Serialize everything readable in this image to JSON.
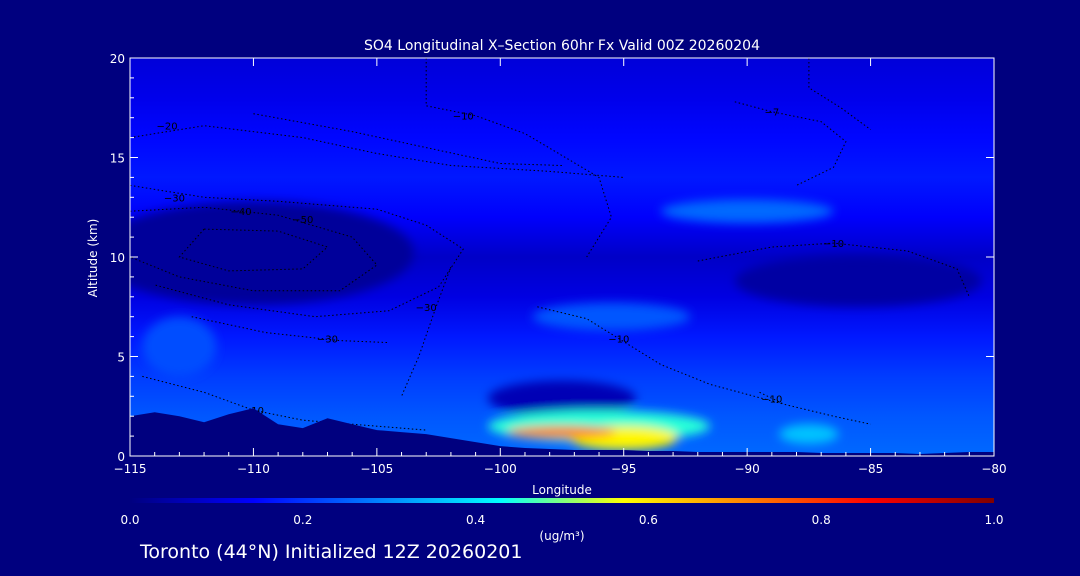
{
  "chart_data": {
    "type": "heatmap",
    "title": "SO4 Longitudinal X–Section 60hr  Fx Valid 00Z 20260204",
    "xlabel": "Longitude",
    "ylabel": "Altitude (km)",
    "xlim": [
      -115,
      -80
    ],
    "ylim": [
      0,
      20
    ],
    "x_ticks": [
      -115,
      -110,
      -105,
      -100,
      -95,
      -90,
      -85,
      -80
    ],
    "x_tick_labels": [
      "−115",
      "−110",
      "−105",
      "−100",
      "−95",
      "−90",
      "−85",
      "−80"
    ],
    "y_ticks": [
      0,
      5,
      10,
      15,
      20
    ],
    "y_tick_labels": [
      "0",
      "5",
      "10",
      "15",
      "20"
    ],
    "colorbar": {
      "label": "(ug/m³)",
      "ticks": [
        0.0,
        0.2,
        0.4,
        0.6,
        0.8,
        1.0
      ],
      "tick_labels": [
        "0.0",
        "0.2",
        "0.4",
        "0.6",
        "0.8",
        "1.0"
      ],
      "colors": [
        "#00007f",
        "#0000ff",
        "#0080ff",
        "#00ffff",
        "#ffff00",
        "#ff8000",
        "#ff0000",
        "#7f0000"
      ]
    },
    "background_field": [
      {
        "altitude_km": 20,
        "value": 0.1
      },
      {
        "altitude_km": 18,
        "value": 0.12
      },
      {
        "altitude_km": 16,
        "value": 0.15
      },
      {
        "altitude_km": 14,
        "value": 0.17
      },
      {
        "altitude_km": 12,
        "value": 0.14
      },
      {
        "altitude_km": 10,
        "value": 0.08
      },
      {
        "altitude_km": 8,
        "value": 0.11
      },
      {
        "altitude_km": 6,
        "value": 0.17
      },
      {
        "altitude_km": 4,
        "value": 0.21
      },
      {
        "altitude_km": 2,
        "value": 0.24
      },
      {
        "altitude_km": 0,
        "value": 0.26
      }
    ],
    "features": [
      {
        "lon_center": -110,
        "alt_center_km": 10.2,
        "lon_radius": 6.5,
        "alt_radius_km": 2.6,
        "value": 0.03
      },
      {
        "lon_center": -85.5,
        "alt_center_km": 8.8,
        "lon_radius": 5.0,
        "alt_radius_km": 1.3,
        "value": 0.04
      },
      {
        "lon_center": -97.5,
        "alt_center_km": 2.9,
        "lon_radius": 3.0,
        "alt_radius_km": 0.9,
        "value": 0.06
      },
      {
        "lon_center": -90,
        "alt_center_km": 12.3,
        "lon_radius": 3.5,
        "alt_radius_km": 0.6,
        "value": 0.26
      },
      {
        "lon_center": -95.5,
        "alt_center_km": 7.0,
        "lon_radius": 3.2,
        "alt_radius_km": 0.7,
        "value": 0.24
      },
      {
        "lon_center": -113,
        "alt_center_km": 5.5,
        "lon_radius": 1.5,
        "alt_radius_km": 1.5,
        "value": 0.23
      },
      {
        "lon_center": -96,
        "alt_center_km": 1.5,
        "lon_radius": 4.5,
        "alt_radius_km": 0.8,
        "value": 0.45
      },
      {
        "lon_center": -95,
        "alt_center_km": 0.9,
        "lon_radius": 2.2,
        "alt_radius_km": 0.6,
        "value": 0.58
      },
      {
        "lon_center": -97.5,
        "alt_center_km": 1.2,
        "lon_radius": 2.2,
        "alt_radius_km": 0.3,
        "value": 0.72
      },
      {
        "lon_center": -87.5,
        "alt_center_km": 1.1,
        "lon_radius": 1.2,
        "alt_radius_km": 0.5,
        "value": 0.36
      }
    ],
    "terrain_km": [
      [
        -115,
        2.0
      ],
      [
        -114,
        2.2
      ],
      [
        -113,
        2.0
      ],
      [
        -112,
        1.7
      ],
      [
        -111,
        2.1
      ],
      [
        -110,
        2.4
      ],
      [
        -109,
        1.6
      ],
      [
        -108,
        1.4
      ],
      [
        -107,
        1.9
      ],
      [
        -106,
        1.6
      ],
      [
        -105,
        1.3
      ],
      [
        -104,
        1.2
      ],
      [
        -103,
        1.1
      ],
      [
        -102,
        0.9
      ],
      [
        -101,
        0.7
      ],
      [
        -100,
        0.5
      ],
      [
        -99,
        0.4
      ],
      [
        -98,
        0.35
      ],
      [
        -97,
        0.3
      ],
      [
        -96,
        0.3
      ],
      [
        -95,
        0.3
      ],
      [
        -94,
        0.25
      ],
      [
        -93,
        0.25
      ],
      [
        -92,
        0.2
      ],
      [
        -91,
        0.2
      ],
      [
        -90,
        0.2
      ],
      [
        -89,
        0.2
      ],
      [
        -88,
        0.2
      ],
      [
        -87,
        0.15
      ],
      [
        -86,
        0.15
      ],
      [
        -85,
        0.15
      ],
      [
        -84,
        0.15
      ],
      [
        -83,
        0.1
      ],
      [
        -82,
        0.15
      ],
      [
        -81,
        0.2
      ],
      [
        -80,
        0.2
      ]
    ],
    "contours": [
      {
        "label": "−20",
        "label_at": [
          -113.5,
          16.6
        ],
        "points": [
          [
            -115,
            16.0
          ],
          [
            -112,
            16.6
          ],
          [
            -108,
            16.0
          ],
          [
            -105,
            15.2
          ],
          [
            -102,
            14.6
          ],
          [
            -98,
            14.3
          ],
          [
            -95,
            14.0
          ]
        ]
      },
      {
        "label": "−10",
        "label_at": [
          -101.5,
          17.1
        ],
        "points": [
          [
            -103,
            20.0
          ],
          [
            -103,
            17.6
          ],
          [
            -101,
            17.1
          ],
          [
            -99,
            16.2
          ],
          [
            -96,
            14.0
          ],
          [
            -95.5,
            12.0
          ],
          [
            -96.5,
            10.0
          ]
        ]
      },
      {
        "label": "−30",
        "label_at": [
          -113.2,
          13.0
        ],
        "points": [
          [
            -115,
            13.6
          ],
          [
            -112,
            13.0
          ],
          [
            -109,
            12.8
          ],
          [
            -105,
            12.4
          ],
          [
            -103,
            11.6
          ],
          [
            -101.5,
            10.4
          ],
          [
            -102.5,
            8.5
          ],
          [
            -104.5,
            7.3
          ],
          [
            -107.5,
            7.0
          ],
          [
            -111,
            7.6
          ],
          [
            -114,
            8.6
          ]
        ]
      },
      {
        "label": "−40",
        "label_at": [
          -110.5,
          12.3
        ],
        "points": [
          [
            -115,
            12.3
          ],
          [
            -112,
            12.5
          ],
          [
            -109,
            12.1
          ],
          [
            -106,
            11.0
          ],
          [
            -105,
            9.6
          ],
          [
            -106.5,
            8.3
          ],
          [
            -110,
            8.3
          ],
          [
            -113,
            9.0
          ],
          [
            -115,
            10.0
          ]
        ]
      },
      {
        "label": "−50",
        "label_at": [
          -108.0,
          11.9
        ],
        "points": [
          [
            -112,
            11.4
          ],
          [
            -109,
            11.3
          ],
          [
            -107,
            10.5
          ],
          [
            -108,
            9.4
          ],
          [
            -111,
            9.3
          ],
          [
            -113,
            10.0
          ],
          [
            -112,
            11.4
          ]
        ]
      },
      {
        "label": "−30",
        "label_at": [
          -103.0,
          7.5
        ],
        "points": [
          [
            -102,
            9.5
          ],
          [
            -102.6,
            7.5
          ],
          [
            -103.3,
            5.0
          ],
          [
            -104.0,
            3.0
          ]
        ]
      },
      {
        "label": "−30",
        "label_at": [
          -107.0,
          5.9
        ],
        "points": [
          [
            -112.5,
            7.0
          ],
          [
            -109.5,
            6.2
          ],
          [
            -106.5,
            5.8
          ],
          [
            -104.5,
            5.7
          ]
        ]
      },
      {
        "label": "−10",
        "label_at": [
          -110.0,
          2.3
        ],
        "points": [
          [
            -114.5,
            4.0
          ],
          [
            -112,
            3.2
          ],
          [
            -110,
            2.3
          ],
          [
            -108,
            1.8
          ],
          [
            -106,
            1.6
          ],
          [
            -103,
            1.3
          ]
        ]
      },
      {
        "label": "−10",
        "label_at": [
          -95.2,
          5.9
        ],
        "points": [
          [
            -98.5,
            7.5
          ],
          [
            -96.5,
            6.9
          ],
          [
            -95.2,
            5.9
          ],
          [
            -93.5,
            4.6
          ],
          [
            -91.5,
            3.6
          ],
          [
            -88.5,
            2.6
          ]
        ]
      },
      {
        "label": "−10",
        "label_at": [
          -89.0,
          2.9
        ],
        "points": [
          [
            -89.5,
            3.2
          ],
          [
            -88.5,
            2.6
          ],
          [
            -86.5,
            2.0
          ],
          [
            -85.0,
            1.6
          ]
        ]
      },
      {
        "label": "−10",
        "label_at": [
          -86.5,
          10.7
        ],
        "points": [
          [
            -92,
            9.8
          ],
          [
            -89,
            10.5
          ],
          [
            -86.5,
            10.7
          ],
          [
            -83.5,
            10.3
          ],
          [
            -81.5,
            9.4
          ],
          [
            -81,
            8.0
          ]
        ]
      },
      {
        "label": "−7",
        "label_at": [
          -89.0,
          17.3
        ],
        "points": [
          [
            -90.5,
            17.8
          ],
          [
            -89,
            17.3
          ],
          [
            -87,
            16.8
          ],
          [
            -86,
            15.8
          ],
          [
            -86.5,
            14.5
          ],
          [
            -88,
            13.6
          ]
        ]
      },
      {
        "label": "",
        "label_at": null,
        "points": [
          [
            -87.5,
            20.0
          ],
          [
            -87.5,
            18.5
          ],
          [
            -86.2,
            17.5
          ],
          [
            -85,
            16.4
          ]
        ]
      },
      {
        "label": "",
        "label_at": null,
        "points": [
          [
            -110,
            17.2
          ],
          [
            -106,
            16.3
          ],
          [
            -103,
            15.5
          ],
          [
            -100,
            14.7
          ],
          [
            -97.5,
            14.6
          ]
        ]
      }
    ]
  },
  "footer": {
    "caption": "Toronto (44°N) Initialized 12Z 20260201"
  }
}
